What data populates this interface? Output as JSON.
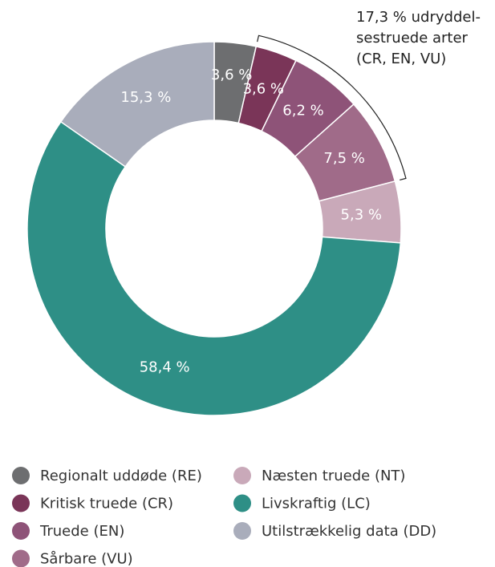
{
  "chart_data": {
    "type": "donut",
    "categories": [
      "Regionalt uddøde (RE)",
      "Kritisk truede (CR)",
      "Truede (EN)",
      "Sårbare (VU)",
      "Næsten truede (NT)",
      "Livskraftig (LC)",
      "Utilstrækkelig data (DD)"
    ],
    "values": [
      3.6,
      3.6,
      6.2,
      7.5,
      5.3,
      58.4,
      15.3
    ],
    "value_labels": [
      "3,6 %",
      "3,6 %",
      "6,2 %",
      "7,5 %",
      "5,3 %",
      "58,4 %",
      "15,3 %"
    ],
    "colors": [
      "#6d6e70",
      "#7a3558",
      "#8e5378",
      "#a06b89",
      "#c9a9b9",
      "#2e8f86",
      "#a9adbb"
    ],
    "annotation": [
      "17,3 % udryddel-",
      "sestruede arter",
      "(CR, EN, VU)"
    ]
  }
}
